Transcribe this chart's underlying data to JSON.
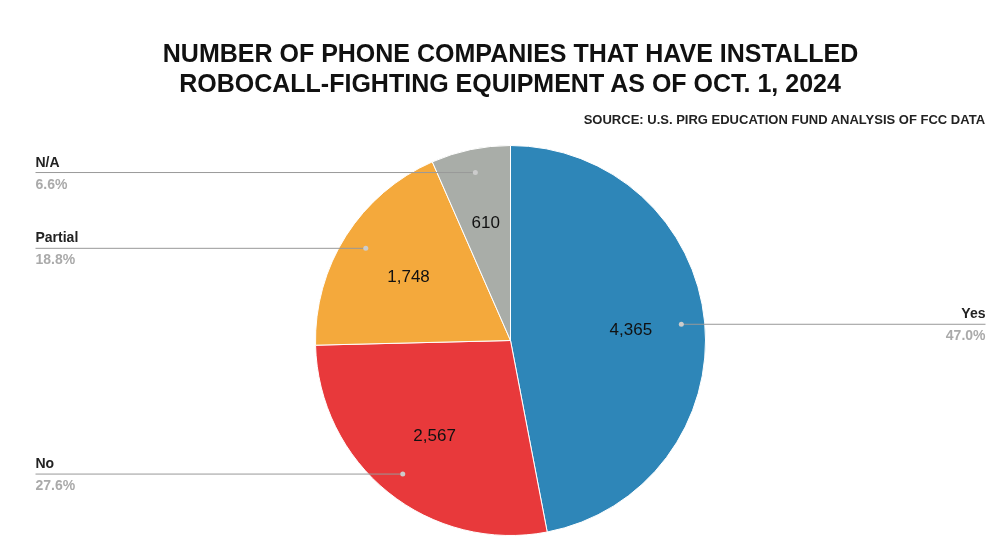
{
  "chart_data": {
    "type": "pie",
    "title": "NUMBER OF PHONE COMPANIES THAT HAVE INSTALLED\nROBOCALL-FIGHTING EQUIPMENT AS OF OCT. 1, 2024",
    "categories": [
      "Yes",
      "No",
      "Partial",
      "N/A"
    ],
    "values": [
      4365,
      2567,
      1748,
      610
    ],
    "colors": [
      "#2e86b8",
      "#e8393b",
      "#f4a93c",
      "#a9ada8"
    ],
    "value_labels": [
      "4,365",
      "2,567",
      "1,748",
      "610"
    ],
    "annotations": [
      "SOURCE: U.S. PIRG EDUCATION FUND ANALYSIS OF FCC DATA",
      "47.0%",
      "27.6%",
      "18.8%",
      "6.6%"
    ]
  }
}
